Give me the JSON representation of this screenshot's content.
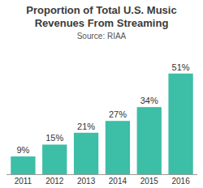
{
  "chart_data": {
    "type": "bar",
    "title": "Proportion of Total U.S. Music Revenues From Streaming",
    "subtitle": "Source: RIAA",
    "categories": [
      "2011",
      "2012",
      "2013",
      "2014",
      "2015",
      "2016"
    ],
    "values": [
      9,
      15,
      21,
      27,
      34,
      51
    ],
    "value_labels": [
      "9%",
      "15%",
      "21%",
      "27%",
      "34%",
      "51%"
    ],
    "color": "#3dbea6",
    "ylim": [
      0,
      55
    ],
    "grid": false,
    "data_labels": true,
    "tick_labels": "x"
  }
}
